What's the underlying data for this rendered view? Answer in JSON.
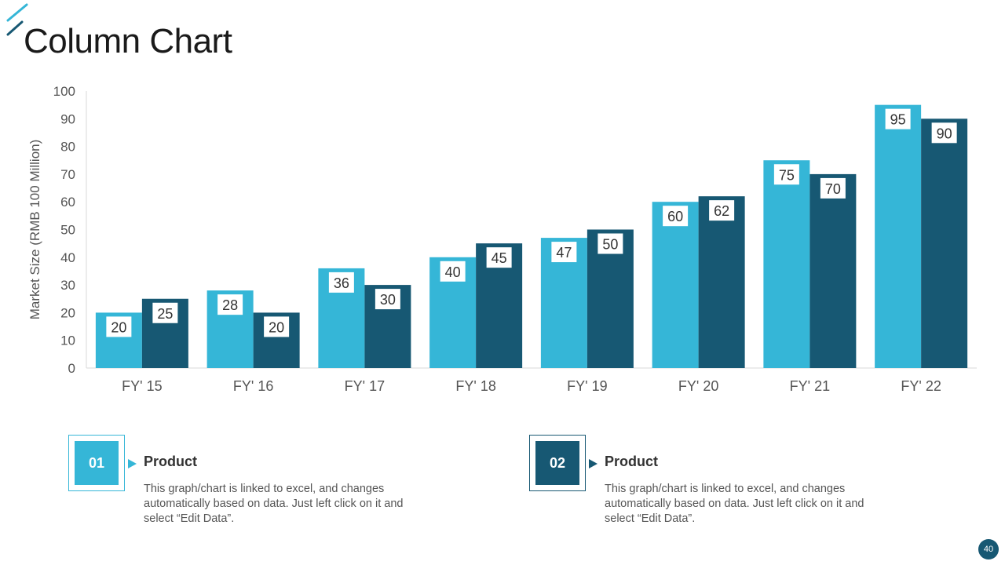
{
  "slide": {
    "title": "Column Chart",
    "page_number": "40"
  },
  "colors": {
    "series1": "#35b6d7",
    "series2": "#175873",
    "accent": "#35b6d7",
    "axis": "#d9d9d9"
  },
  "chart_data": {
    "type": "bar",
    "title": "",
    "xlabel": "",
    "ylabel": "Market Size (RMB 100 Million)",
    "ylim": [
      0,
      100
    ],
    "yticks": [
      0,
      10,
      20,
      30,
      40,
      50,
      60,
      70,
      80,
      90,
      100
    ],
    "grid": false,
    "categories": [
      "FY' 15",
      "FY' 16",
      "FY' 17",
      "FY' 18",
      "FY' 19",
      "FY' 20",
      "FY' 21",
      "FY' 22"
    ],
    "series": [
      {
        "name": "Product 01",
        "values": [
          20,
          28,
          36,
          40,
          47,
          60,
          75,
          95
        ]
      },
      {
        "name": "Product 02",
        "values": [
          25,
          20,
          30,
          45,
          50,
          62,
          70,
          90
        ]
      }
    ]
  },
  "legend": [
    {
      "number": "01",
      "heading": "Product",
      "description": "This graph/chart is linked to excel, and changes automatically based on data. Just left click on it and select “Edit Data”."
    },
    {
      "number": "02",
      "heading": "Product",
      "description": "This graph/chart is linked to excel, and changes automatically based on data. Just left click on it and select “Edit Data”."
    }
  ]
}
